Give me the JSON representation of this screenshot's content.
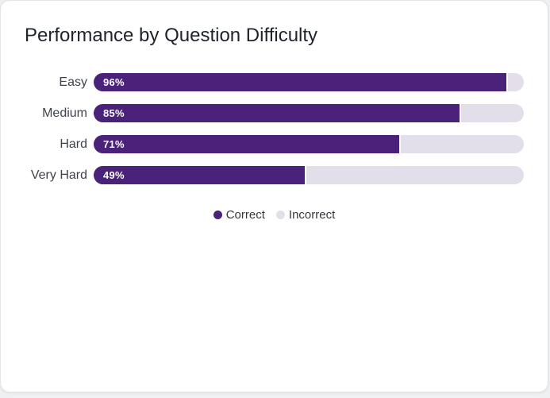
{
  "card": {
    "title": "Performance by Question Difficulty"
  },
  "colors": {
    "correct": "#4a2279",
    "incorrect": "#e3dfea",
    "card_background": "#ffffff",
    "page_background": "#eff0f2",
    "title_text": "#1f232b",
    "label_text": "#3e424a"
  },
  "chart_data": {
    "type": "bar",
    "orientation": "horizontal",
    "stacked": true,
    "title": "Performance by Question Difficulty",
    "categories": [
      "Easy",
      "Medium",
      "Hard",
      "Very Hard"
    ],
    "series": [
      {
        "name": "Correct",
        "values": [
          96,
          85,
          71,
          49
        ],
        "color": "#4a2279"
      },
      {
        "name": "Incorrect",
        "values": [
          4,
          15,
          29,
          51
        ],
        "color": "#e3dfea"
      }
    ],
    "xlim": [
      0,
      100
    ],
    "grid": false,
    "value_label_format": "percent",
    "legend_position": "bottom",
    "rows": [
      {
        "label": "Easy",
        "correct_pct": 96,
        "value_label": "96%"
      },
      {
        "label": "Medium",
        "correct_pct": 85,
        "value_label": "85%"
      },
      {
        "label": "Hard",
        "correct_pct": 71,
        "value_label": "71%"
      },
      {
        "label": "Very Hard",
        "correct_pct": 49,
        "value_label": "49%"
      }
    ],
    "legend": {
      "items": [
        {
          "label": "Correct",
          "color": "#4a2279"
        },
        {
          "label": "Incorrect",
          "color": "#e3dfea"
        }
      ]
    }
  }
}
